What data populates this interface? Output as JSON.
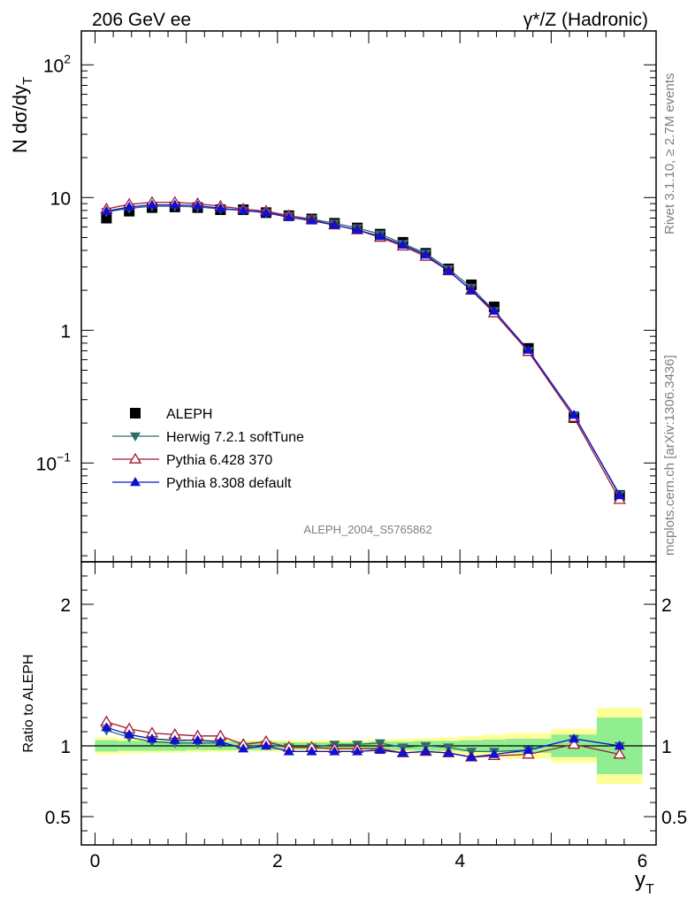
{
  "header": {
    "left": "206 GeV ee",
    "right": "γ*/Z (Hadronic)"
  },
  "side": {
    "rivet": "Rivet 3.1.10, ≥ 2.7M events",
    "mcplots": "mcplots.cern.ch [arXiv:1306.3436]"
  },
  "analysis_label": "ALEPH_2004_S5765862",
  "chart_data": [
    {
      "type": "line",
      "panel": "main",
      "ylabel": "N dσ/dy",
      "ylabel_sub": "T",
      "yscale": "log",
      "ylim": [
        0.018,
        180
      ],
      "xlim": [
        -0.15,
        6.15
      ],
      "ytick_labels": [
        {
          "v": 100,
          "base": "10",
          "exp": "2"
        },
        {
          "v": 10,
          "base": "10",
          "exp": ""
        },
        {
          "v": 1,
          "base": "1",
          "exp": ""
        },
        {
          "v": 0.1,
          "base": "10",
          "exp": "−1"
        }
      ],
      "x": [
        0.125,
        0.375,
        0.625,
        0.875,
        1.125,
        1.375,
        1.625,
        1.875,
        2.125,
        2.375,
        2.625,
        2.875,
        3.125,
        3.375,
        3.625,
        3.875,
        4.125,
        4.375,
        4.75,
        5.25,
        5.75
      ],
      "series": [
        {
          "name": "ALEPH",
          "color": "#000000",
          "marker": "square",
          "line": false,
          "values": [
            7.0,
            7.9,
            8.4,
            8.5,
            8.4,
            8.1,
            8.1,
            7.7,
            7.3,
            6.9,
            6.4,
            5.9,
            5.3,
            4.6,
            3.8,
            2.9,
            2.2,
            1.5,
            0.73,
            0.22,
            0.057
          ]
        },
        {
          "name": "Herwig 7.2.1 softTune",
          "color": "#2f6d6d",
          "marker": "triangle-down",
          "line": true,
          "values": [
            7.8,
            8.3,
            8.6,
            8.6,
            8.5,
            8.2,
            8.0,
            7.7,
            7.3,
            6.9,
            6.4,
            5.9,
            5.3,
            4.5,
            3.8,
            2.9,
            2.1,
            1.4,
            0.7,
            0.23,
            0.058
          ]
        },
        {
          "name": "Pythia 6.428 370",
          "color": "#a01830",
          "marker": "triangle-up-open",
          "line": true,
          "values": [
            8.2,
            8.9,
            9.2,
            9.2,
            9.0,
            8.6,
            8.2,
            7.9,
            7.3,
            6.8,
            6.2,
            5.7,
            5.0,
            4.3,
            3.6,
            2.8,
            2.0,
            1.35,
            0.69,
            0.22,
            0.053
          ]
        },
        {
          "name": "Pythia 8.308 default",
          "color": "#1010d0",
          "marker": "triangle-up",
          "line": true,
          "values": [
            7.9,
            8.5,
            8.8,
            8.8,
            8.7,
            8.3,
            8.0,
            7.7,
            7.1,
            6.7,
            6.2,
            5.7,
            5.1,
            4.4,
            3.7,
            2.8,
            2.0,
            1.4,
            0.71,
            0.23,
            0.057
          ]
        }
      ]
    },
    {
      "type": "line",
      "panel": "ratio",
      "ylabel": "Ratio to ALEPH",
      "xlabel": "y",
      "xlabel_sub": "T",
      "ylim": [
        0.3,
        2.3
      ],
      "xlim": [
        -0.15,
        6.15
      ],
      "xticks": [
        0,
        2,
        4,
        6
      ],
      "yticks": [
        0.5,
        1,
        2
      ],
      "ytick_labels": [
        "0.5",
        "1",
        "2"
      ],
      "bins": [
        [
          0,
          0.25
        ],
        [
          0.25,
          0.5
        ],
        [
          0.5,
          0.75
        ],
        [
          0.75,
          1.0
        ],
        [
          1.0,
          1.25
        ],
        [
          1.25,
          1.5
        ],
        [
          1.5,
          1.75
        ],
        [
          1.75,
          2.0
        ],
        [
          2.0,
          2.25
        ],
        [
          2.25,
          2.5
        ],
        [
          2.5,
          2.75
        ],
        [
          2.75,
          3.0
        ],
        [
          3.0,
          3.25
        ],
        [
          3.25,
          3.5
        ],
        [
          3.5,
          3.75
        ],
        [
          3.75,
          4.0
        ],
        [
          4.0,
          4.25
        ],
        [
          4.25,
          4.5
        ],
        [
          4.5,
          5.0
        ],
        [
          5.0,
          5.5
        ],
        [
          5.5,
          6.0
        ]
      ],
      "band_inner": [
        0.04,
        0.035,
        0.035,
        0.035,
        0.03,
        0.03,
        0.03,
        0.03,
        0.025,
        0.025,
        0.025,
        0.025,
        0.03,
        0.03,
        0.035,
        0.035,
        0.04,
        0.045,
        0.05,
        0.08,
        0.2
      ],
      "band_outer": [
        0.06,
        0.055,
        0.05,
        0.05,
        0.045,
        0.045,
        0.04,
        0.04,
        0.04,
        0.04,
        0.04,
        0.04,
        0.045,
        0.05,
        0.055,
        0.06,
        0.07,
        0.08,
        0.09,
        0.12,
        0.27
      ],
      "band_colors": {
        "inner": "#90ee90",
        "outer": "#ffff99"
      },
      "series": [
        {
          "name": "Herwig 7.2.1 softTune",
          "values": [
            1.11,
            1.06,
            1.03,
            1.02,
            1.02,
            1.02,
            0.99,
            1.01,
            0.99,
            0.99,
            1.01,
            1.01,
            1.02,
            0.99,
            1.0,
            0.99,
            0.96,
            0.96,
            0.97,
            1.05,
            1.0
          ]
        },
        {
          "name": "Pythia 6.428 370",
          "values": [
            1.17,
            1.12,
            1.09,
            1.08,
            1.07,
            1.07,
            1.01,
            1.03,
            0.99,
            0.99,
            0.98,
            0.98,
            0.98,
            0.95,
            0.96,
            0.95,
            0.92,
            0.93,
            0.94,
            1.01,
            0.94
          ]
        },
        {
          "name": "Pythia 8.308 default",
          "values": [
            1.13,
            1.08,
            1.05,
            1.04,
            1.04,
            1.03,
            0.98,
            1.0,
            0.96,
            0.96,
            0.96,
            0.96,
            0.97,
            0.95,
            0.96,
            0.95,
            0.92,
            0.94,
            0.97,
            1.05,
            1.0
          ]
        }
      ]
    }
  ]
}
